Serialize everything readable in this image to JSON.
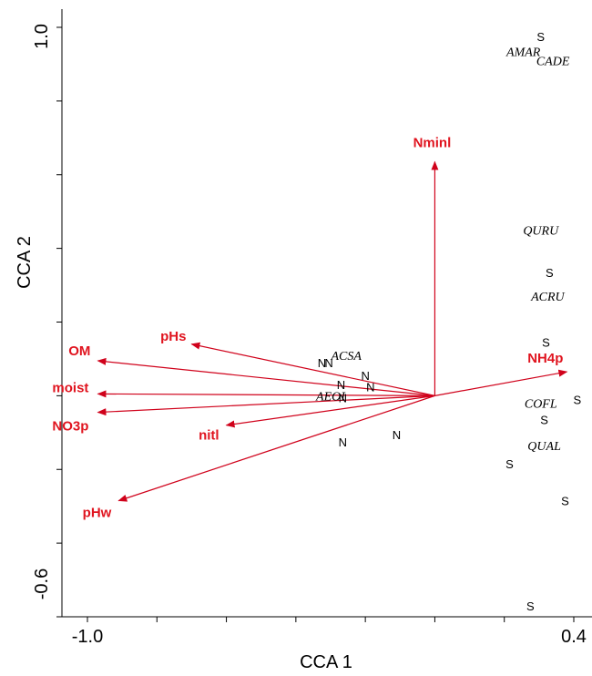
{
  "chart_data": {
    "type": "scatter",
    "title": "",
    "xlabel": "CCA 1",
    "ylabel": "CCA 2",
    "xlim": [
      -1.0,
      0.4
    ],
    "ylim": [
      -0.6,
      1.0
    ],
    "x_tick_labels": [
      "-1.0",
      "0.4"
    ],
    "y_tick_labels": [
      "-0.6",
      "1.0"
    ],
    "grid": false,
    "arrow_color": "#d0021b",
    "label_color": "#e0141f",
    "environmental_vectors": [
      {
        "label": "Nminl",
        "x": 0.0,
        "y": 0.635
      },
      {
        "label": "NH4p",
        "x": 0.38,
        "y": 0.065
      },
      {
        "label": "pHs",
        "x": -0.7,
        "y": 0.14
      },
      {
        "label": "OM",
        "x": -0.97,
        "y": 0.095
      },
      {
        "label": "moist",
        "x": -0.97,
        "y": 0.005
      },
      {
        "label": "NO3p",
        "x": -0.97,
        "y": -0.045
      },
      {
        "label": "nitl",
        "x": -0.6,
        "y": -0.08
      },
      {
        "label": "pHw",
        "x": -0.91,
        "y": -0.285
      }
    ],
    "species": [
      {
        "label": "AMAR",
        "x": 0.255,
        "y": 0.935
      },
      {
        "label": "CADE",
        "x": 0.34,
        "y": 0.91
      },
      {
        "label": "QURU",
        "x": 0.305,
        "y": 0.45
      },
      {
        "label": "ACRU",
        "x": 0.325,
        "y": 0.27
      },
      {
        "label": "ACSA",
        "x": -0.255,
        "y": 0.11
      },
      {
        "label": "AEOI",
        "x": -0.3,
        "y": 0.0
      },
      {
        "label": "COFL",
        "x": 0.305,
        "y": -0.02
      },
      {
        "label": "QUAL",
        "x": 0.315,
        "y": -0.135
      }
    ],
    "sites": [
      {
        "group": "S",
        "x": 0.305,
        "y": 0.975
      },
      {
        "group": "S",
        "x": 0.33,
        "y": 0.335
      },
      {
        "group": "S",
        "x": 0.32,
        "y": 0.145
      },
      {
        "group": "S",
        "x": 0.41,
        "y": -0.01
      },
      {
        "group": "S",
        "x": 0.315,
        "y": -0.065
      },
      {
        "group": "S",
        "x": 0.215,
        "y": -0.185
      },
      {
        "group": "S",
        "x": 0.375,
        "y": -0.285
      },
      {
        "group": "S",
        "x": 0.275,
        "y": -0.57
      },
      {
        "group": "N",
        "x": -0.325,
        "y": 0.09
      },
      {
        "group": "N",
        "x": -0.305,
        "y": 0.09
      },
      {
        "group": "N",
        "x": -0.2,
        "y": 0.055
      },
      {
        "group": "N",
        "x": -0.27,
        "y": 0.03
      },
      {
        "group": "N",
        "x": -0.185,
        "y": 0.025
      },
      {
        "group": "N",
        "x": -0.265,
        "y": -0.005
      },
      {
        "group": "N",
        "x": -0.265,
        "y": -0.125
      },
      {
        "group": "N",
        "x": -0.11,
        "y": -0.105
      }
    ]
  }
}
